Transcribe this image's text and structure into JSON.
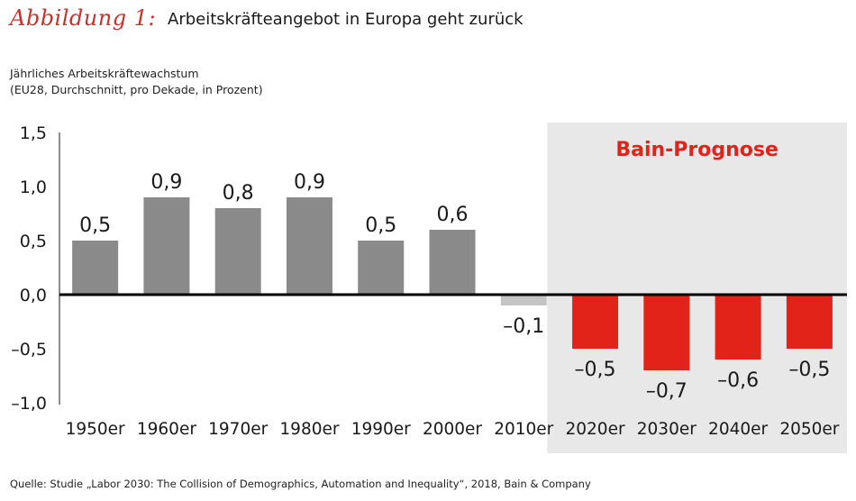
{
  "header": {
    "figure_label": "Abbildung 1:",
    "title": "Arbeitskräfteangebot in Europa geht zurück"
  },
  "subtitle": {
    "line1": "Jährliches Arbeitskräftewachstum",
    "line2": "(EU28, Durchschnitt, pro Dekade, in Prozent)"
  },
  "source": "Quelle: Studie „Labor 2030: The Collision of Demographics, Automation and Inequality“, 2018, Bain & Company",
  "colors": {
    "historic": "#8a8a8a",
    "recent": "#c4c4c4",
    "forecast": "#e2231a",
    "forecast_band": "#e8e8e8",
    "forecast_label": "#e2231a"
  },
  "chart_data": {
    "type": "bar",
    "categories": [
      "1950er",
      "1960er",
      "1970er",
      "1980er",
      "1990er",
      "2000er",
      "2010er",
      "2020er",
      "2030er",
      "2040er",
      "2050er"
    ],
    "values": [
      0.5,
      0.9,
      0.8,
      0.9,
      0.5,
      0.6,
      -0.1,
      -0.5,
      -0.7,
      -0.6,
      -0.5
    ],
    "data_labels": [
      "0,5",
      "0,9",
      "0,8",
      "0,9",
      "0,5",
      "0,6",
      "–0,1",
      "–0,5",
      "–0,7",
      "–0,6",
      "–0,5"
    ],
    "bar_kind": [
      "historic",
      "historic",
      "historic",
      "historic",
      "historic",
      "historic",
      "recent",
      "forecast",
      "forecast",
      "forecast",
      "forecast"
    ],
    "ylim": [
      -1.0,
      1.5
    ],
    "yticks": [
      1.5,
      1.0,
      0.5,
      0.0,
      -0.5,
      -1.0
    ],
    "ytick_labels": [
      "1,5",
      "1,0",
      "0,5",
      "0,0",
      "–0,5",
      "–1,0"
    ],
    "forecast_label": "Bain-Prognose",
    "forecast_start_index": 7,
    "grid": false
  }
}
